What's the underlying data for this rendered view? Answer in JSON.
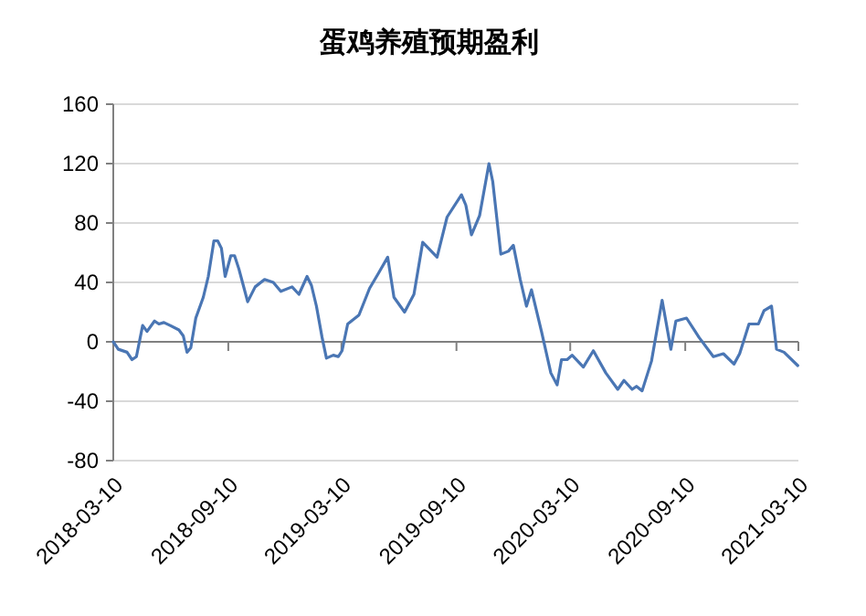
{
  "chart_data": {
    "type": "line",
    "title": "蛋鸡养殖预期盈利",
    "x": [
      "2018-03-10",
      "2018-03-18",
      "2018-04-01",
      "2018-04-09",
      "2018-04-16",
      "2018-04-26",
      "2018-05-03",
      "2018-05-15",
      "2018-05-22",
      "2018-05-30",
      "2018-06-09",
      "2018-06-23",
      "2018-06-30",
      "2018-07-06",
      "2018-07-12",
      "2018-07-20",
      "2018-08-01",
      "2018-08-09",
      "2018-08-18",
      "2018-08-24",
      "2018-08-30",
      "2018-09-05",
      "2018-09-14",
      "2018-09-20",
      "2018-09-27",
      "2018-10-04",
      "2018-10-11",
      "2018-10-23",
      "2018-11-07",
      "2018-11-21",
      "2018-12-03",
      "2018-12-21",
      "2019-01-01",
      "2019-01-14",
      "2019-01-21",
      "2019-01-29",
      "2019-02-07",
      "2019-02-14",
      "2019-02-25",
      "2019-03-05",
      "2019-03-11",
      "2019-03-20",
      "2019-04-07",
      "2019-04-24",
      "2019-05-08",
      "2019-05-23",
      "2019-06-02",
      "2019-06-19",
      "2019-07-04",
      "2019-07-18",
      "2019-08-10",
      "2019-08-26",
      "2019-09-18",
      "2019-09-25",
      "2019-10-04",
      "2019-10-17",
      "2019-11-01",
      "2019-11-07",
      "2019-11-20",
      "2019-12-02",
      "2019-12-10",
      "2019-12-21",
      "2019-12-31",
      "2020-01-08",
      "2020-01-24",
      "2020-02-08",
      "2020-02-18",
      "2020-02-25",
      "2020-03-05",
      "2020-03-13",
      "2020-03-31",
      "2020-04-16",
      "2020-05-06",
      "2020-05-25",
      "2020-06-04",
      "2020-06-17",
      "2020-06-24",
      "2020-07-03",
      "2020-07-18",
      "2020-08-04",
      "2020-08-18",
      "2020-08-26",
      "2020-09-12",
      "2020-10-02",
      "2020-10-25",
      "2020-11-10",
      "2020-11-27",
      "2020-12-06",
      "2020-12-21",
      "2021-01-05",
      "2021-01-14",
      "2021-01-26",
      "2021-02-03",
      "2021-02-15",
      "2021-03-09"
    ],
    "series": [
      {
        "color": "#4a76b4",
        "values": [
          0,
          -5,
          -7,
          -12,
          -10,
          11,
          7,
          14,
          12,
          13,
          11,
          8,
          4,
          -7,
          -4,
          16,
          30,
          44,
          68,
          68,
          63,
          44,
          58,
          58,
          49,
          38,
          27,
          37,
          42,
          40,
          34,
          37,
          32,
          44,
          38,
          24,
          3,
          -11,
          -9,
          -10,
          -6,
          12,
          18,
          36,
          46,
          57,
          30,
          20,
          32,
          67,
          57,
          84,
          99,
          92,
          72,
          85,
          120,
          108,
          59,
          61,
          65,
          42,
          24,
          35,
          7,
          -21,
          -29,
          -12,
          -12,
          -9,
          -17,
          -6,
          -21,
          -32,
          -26,
          -32,
          -30,
          -33,
          -13,
          28,
          -5,
          14,
          16,
          3,
          -10,
          -8,
          -15,
          -8,
          12,
          12,
          21,
          24,
          -5,
          -7,
          -16
        ]
      }
    ],
    "xlim": [
      "2018-03-10",
      "2021-03-10"
    ],
    "xticks": [
      "2018-03-10",
      "2018-09-10",
      "2019-03-10",
      "2019-09-10",
      "2020-03-10",
      "2020-09-10",
      "2021-03-10"
    ],
    "ylim": [
      -80,
      160
    ],
    "yticks": [
      -80,
      -40,
      0,
      40,
      80,
      120,
      160
    ],
    "grid": "y",
    "marker": "none",
    "line_style": "solid"
  }
}
